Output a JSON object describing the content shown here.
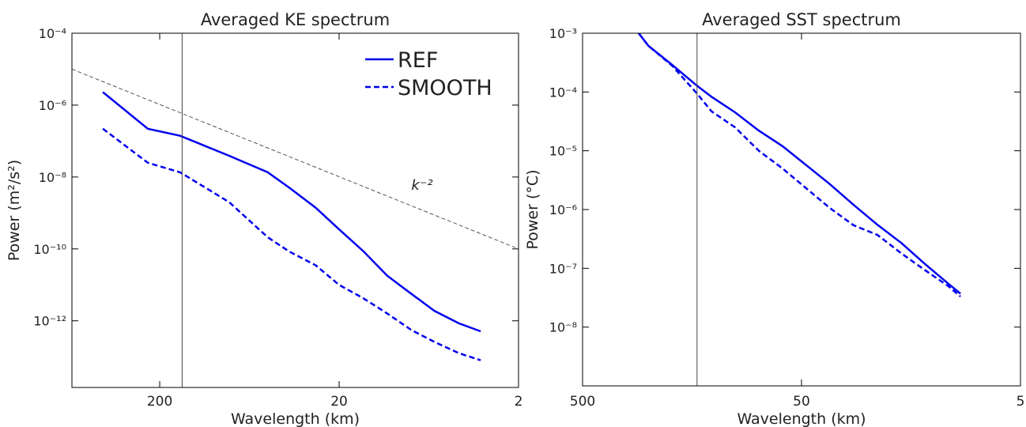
{
  "chart_data": [
    {
      "type": "line",
      "title": "Averaged KE spectrum",
      "xlabel": "Wavelength (km)",
      "ylabel": "Power (m²/s²)",
      "xlog": true,
      "ylog": true,
      "xlim": [
        617,
        2
      ],
      "ylim": [
        1.4e-14,
        0.0001
      ],
      "xticks": [
        200,
        20,
        2
      ],
      "yticks": [
        {
          "value": 0.0001,
          "label": "10⁻⁴"
        },
        {
          "value": 1e-06,
          "label": "10⁻⁶"
        },
        {
          "value": 1e-08,
          "label": "10⁻⁸"
        },
        {
          "value": 1e-10,
          "label": "10⁻¹⁰"
        },
        {
          "value": 1e-12,
          "label": "10⁻¹²"
        }
      ],
      "x": [
        415,
        233,
        154,
        82,
        50,
        38,
        27,
        20,
        14.6,
        10.8,
        7.9,
        5.9,
        4.3,
        3.25
      ],
      "series": [
        {
          "name": "REF",
          "color": "#0000ee",
          "linestyle": "solid",
          "values": [
            2.3e-06,
            2.2e-07,
            1.4e-07,
            3.9e-08,
            1.35e-08,
            5.1e-09,
            1.4e-09,
            3.5e-10,
            8.5e-11,
            1.8e-11,
            5.6e-12,
            1.9e-12,
            8.5e-13,
            5.1e-13
          ]
        },
        {
          "name": "SMOOTH",
          "color": "#0000ee",
          "linestyle": "dashed",
          "values": [
            2.2e-07,
            2.5e-08,
            1.35e-08,
            2e-09,
            2.1e-10,
            8.5e-11,
            3.5e-11,
            1e-11,
            4.2e-12,
            1.6e-12,
            5.5e-13,
            2.6e-13,
            1.26e-13,
            8e-14
          ]
        }
      ],
      "reference": {
        "x": [
          617,
          2
        ],
        "values": [
          1e-05,
          1e-10
        ],
        "color": "#555555"
      },
      "annotation": "k⁻²",
      "vline": 150,
      "legend": "upper right"
    },
    {
      "type": "line",
      "title": "Averaged SST spectrum",
      "xlabel": "Wavelength (km)",
      "ylabel": "Power (°C)",
      "xlog": true,
      "ylog": true,
      "xlim": [
        500,
        5
      ],
      "ylim": [
        1e-09,
        0.001
      ],
      "xticks": [
        500,
        50,
        5
      ],
      "yticks": [
        {
          "value": 0.001,
          "label": "10⁻³"
        },
        {
          "value": 0.0001,
          "label": "10⁻⁴"
        },
        {
          "value": 1e-05,
          "label": "10⁻⁵"
        },
        {
          "value": 1e-06,
          "label": "10⁻⁶"
        },
        {
          "value": 1e-07,
          "label": "10⁻⁷"
        },
        {
          "value": 1e-08,
          "label": "10⁻⁸"
        }
      ],
      "x": [
        277,
        250,
        195,
        150,
        129,
        100.5,
        78.3,
        61.1,
        47.6,
        37.1,
        28.9,
        22.5,
        17.5,
        13.7,
        10.7,
        9.4
      ],
      "series": [
        {
          "name": "REF",
          "color": "#0000ee",
          "linestyle": "solid",
          "values": [
            0.001,
            0.00061,
            0.00029,
            0.000128,
            8.3e-05,
            4.5e-05,
            2.2e-05,
            1.2e-05,
            5.7e-06,
            2.7e-06,
            1.2e-06,
            5.5e-07,
            2.7e-07,
            1.2e-07,
            5.5e-08,
            3.7e-08
          ]
        },
        {
          "name": "SMOOTH",
          "color": "#0000ee",
          "linestyle": "dashed",
          "values": [
            0.001,
            0.00061,
            0.00028,
            9.4e-05,
            4.7e-05,
            2.5e-05,
            1e-05,
            5e-06,
            2.3e-06,
            1.06e-06,
            5.4e-07,
            3.7e-07,
            1.8e-07,
            9.4e-08,
            5e-08,
            3.3e-08
          ]
        }
      ],
      "vline": 150
    }
  ]
}
